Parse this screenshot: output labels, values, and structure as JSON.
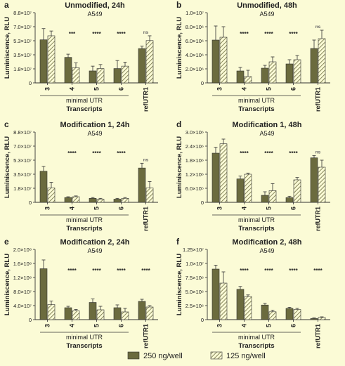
{
  "legend": {
    "items": [
      {
        "label": "250 ng/well",
        "style": "solid"
      },
      {
        "label": "125 ng/well",
        "style": "hatched"
      }
    ]
  },
  "colors": {
    "background": "#fbfbd6",
    "solid_bar": "#6b6b3e",
    "hatch_line": "#6b6b3e",
    "hatch_bg": "#fbfbd6",
    "axis": "#333333",
    "text": "#222222",
    "ns_text": "#666666"
  },
  "chart_data": [
    {
      "panel": "a",
      "type": "bar",
      "title": "Unmodified, 24h",
      "subtitle": "A549",
      "ylabel": "Luminiscence, RLU",
      "xlabel": "Transcripts",
      "group_label": "minimal UTR",
      "ylim": [
        0,
        88000000.0
      ],
      "yticks": [
        "0",
        "1.8×10⁷",
        "3.5×10⁷",
        "5.3×10⁷",
        "7.0×10⁷",
        "8.8×10⁷"
      ],
      "categories": [
        "3",
        "4",
        "5",
        "6",
        "refUTR1"
      ],
      "series": [
        {
          "name": "250 ng/well",
          "values": [
            54000000.0,
            32000000.0,
            15000000.0,
            18000000.0,
            43000000.0
          ],
          "errors": [
            14000000.0,
            4000000.0,
            6000000.0,
            10000000.0,
            3000000.0
          ]
        },
        {
          "name": "125 ng/well",
          "values": [
            59000000.0,
            19000000.0,
            18000000.0,
            21000000.0,
            53000000.0
          ],
          "errors": [
            6000000.0,
            6000000.0,
            5000000.0,
            5000000.0,
            6000000.0
          ]
        }
      ],
      "significance": [
        "",
        "***",
        "****",
        "****",
        "ns"
      ],
      "grid": false
    },
    {
      "panel": "b",
      "type": "bar",
      "title": "Unmodified, 48h",
      "subtitle": "A549",
      "ylabel": "Luminiscence, RLU",
      "xlabel": "Transcripts",
      "group_label": "minimal UTR",
      "ylim": [
        0,
        10000000.0
      ],
      "yticks": [
        "0",
        "2.0×10⁶",
        "4.0×10⁶",
        "6.0×10⁶",
        "8.0×10⁶",
        "1.0×10⁷"
      ],
      "categories": [
        "3",
        "4",
        "5",
        "6",
        "refUTR1"
      ],
      "series": [
        {
          "name": "250 ng/well",
          "values": [
            6100000.0,
            1700000.0,
            2100000.0,
            2700000.0,
            4900000.0
          ],
          "errors": [
            2000000.0,
            500000.0,
            400000.0,
            600000.0,
            1200000.0
          ]
        },
        {
          "name": "125 ng/well",
          "values": [
            6500000.0,
            900000.0,
            3000000.0,
            3300000.0,
            6300000.0
          ],
          "errors": [
            1500000.0,
            900000.0,
            700000.0,
            600000.0,
            1200000.0
          ]
        }
      ],
      "significance": [
        "",
        "****",
        "****",
        "****",
        "ns"
      ],
      "grid": false
    },
    {
      "panel": "c",
      "type": "bar",
      "title": "Modification 1, 24h",
      "subtitle": "A549",
      "ylabel": "Luminiscence, RLU",
      "xlabel": "Transcripts",
      "group_label": "minimal UTR",
      "ylim": [
        0,
        88000000.0
      ],
      "yticks": [
        "0",
        "1.8×10⁷",
        "3.5×10⁷",
        "5.3×10⁷",
        "7.0×10⁷",
        "8.8×10⁷"
      ],
      "categories": [
        "3",
        "4",
        "5",
        "6",
        "refUTR1"
      ],
      "series": [
        {
          "name": "250 ng/well",
          "values": [
            39000000.0,
            6000000.0,
            5000000.0,
            4000000.0,
            43000000.0
          ],
          "errors": [
            6000000.0,
            1000000.0,
            1000000.0,
            1000000.0,
            6000000.0
          ]
        },
        {
          "name": "125 ng/well",
          "values": [
            18000000.0,
            7000000.0,
            4000000.0,
            5000000.0,
            18000000.0
          ],
          "errors": [
            7000000.0,
            1000000.0,
            1000000.0,
            1000000.0,
            8000000.0
          ]
        }
      ],
      "significance": [
        "",
        "****",
        "****",
        "****",
        "ns"
      ],
      "grid": false
    },
    {
      "panel": "d",
      "type": "bar",
      "title": "Modification 1, 48h",
      "subtitle": "A549",
      "ylabel": "Luminiscence, RLU",
      "xlabel": "Transcripts",
      "group_label": "minimal UTR",
      "ylim": [
        0,
        3000000.0
      ],
      "yticks": [
        "0",
        "6.0×10⁵",
        "1.2×10⁶",
        "1.8×10⁶",
        "2.4×10⁶",
        "3.0×10⁶"
      ],
      "categories": [
        "3",
        "4",
        "5",
        "6",
        "refUTR1"
      ],
      "series": [
        {
          "name": "250 ng/well",
          "values": [
            2100000.0,
            1000000.0,
            300000.0,
            200000.0,
            1900000.0
          ],
          "errors": [
            250000.0,
            120000.0,
            150000.0,
            60000.0,
            100000.0
          ]
        },
        {
          "name": "125 ng/well",
          "values": [
            2500000.0,
            1200000.0,
            500000.0,
            960000.0,
            1500000.0
          ],
          "errors": [
            200000.0,
            50000.0,
            300000.0,
            100000.0,
            300000.0
          ]
        }
      ],
      "significance": [
        "",
        "****",
        "****",
        "****",
        "ns"
      ],
      "grid": false
    },
    {
      "panel": "e",
      "type": "bar",
      "title": "Modification 2, 24h",
      "subtitle": "A549",
      "ylabel": "Luminiscence, RLU",
      "xlabel": "Transcripts",
      "group_label": "minimal UTR",
      "ylim": [
        0,
        200000000.0
      ],
      "yticks": [
        "0",
        "4.0×10⁷",
        "8.0×10⁷",
        "1.2×10⁸",
        "1.6×10⁸",
        "2.0×10⁸"
      ],
      "categories": [
        "3",
        "4",
        "5",
        "6",
        "refUTR1"
      ],
      "series": [
        {
          "name": "250 ng/well",
          "values": [
            145000000.0,
            34000000.0,
            49000000.0,
            34000000.0,
            52000000.0
          ],
          "errors": [
            25000000.0,
            4000000.0,
            10000000.0,
            8000000.0,
            6000000.0
          ]
        },
        {
          "name": "125 ng/well",
          "values": [
            43000000.0,
            25000000.0,
            28000000.0,
            22000000.0,
            36000000.0
          ],
          "errors": [
            10000000.0,
            4000000.0,
            10000000.0,
            10000000.0,
            4000000.0
          ]
        }
      ],
      "significance": [
        "",
        "****",
        "****",
        "****",
        "****"
      ],
      "grid": false
    },
    {
      "panel": "f",
      "type": "bar",
      "title": "Modification 2, 48h",
      "subtitle": "A549",
      "ylabel": "Luminiscence, RLU",
      "xlabel": "Transcripts",
      "group_label": "minimal UTR",
      "ylim": [
        0,
        12500000.0
      ],
      "yticks": [
        "0",
        "2.5×10⁶",
        "5.0×10⁶",
        "7.5×10⁶",
        "1.0×10⁷",
        "1.25×10⁷"
      ],
      "categories": [
        "3",
        "4",
        "5",
        "6",
        "refUTR1"
      ],
      "series": [
        {
          "name": "250 ng/well",
          "values": [
            9000000.0,
            5400000.0,
            2600000.0,
            2000000.0,
            200000.0
          ],
          "errors": [
            700000.0,
            500000.0,
            300000.0,
            200000.0,
            100000.0
          ]
        },
        {
          "name": "125 ng/well",
          "values": [
            6500000.0,
            4100000.0,
            1400000.0,
            1800000.0,
            400000.0
          ],
          "errors": [
            2000000.0,
            300000.0,
            300000.0,
            200000.0,
            100000.0
          ]
        }
      ],
      "significance": [
        "",
        "****",
        "****",
        "****",
        "****"
      ],
      "grid": false
    }
  ]
}
